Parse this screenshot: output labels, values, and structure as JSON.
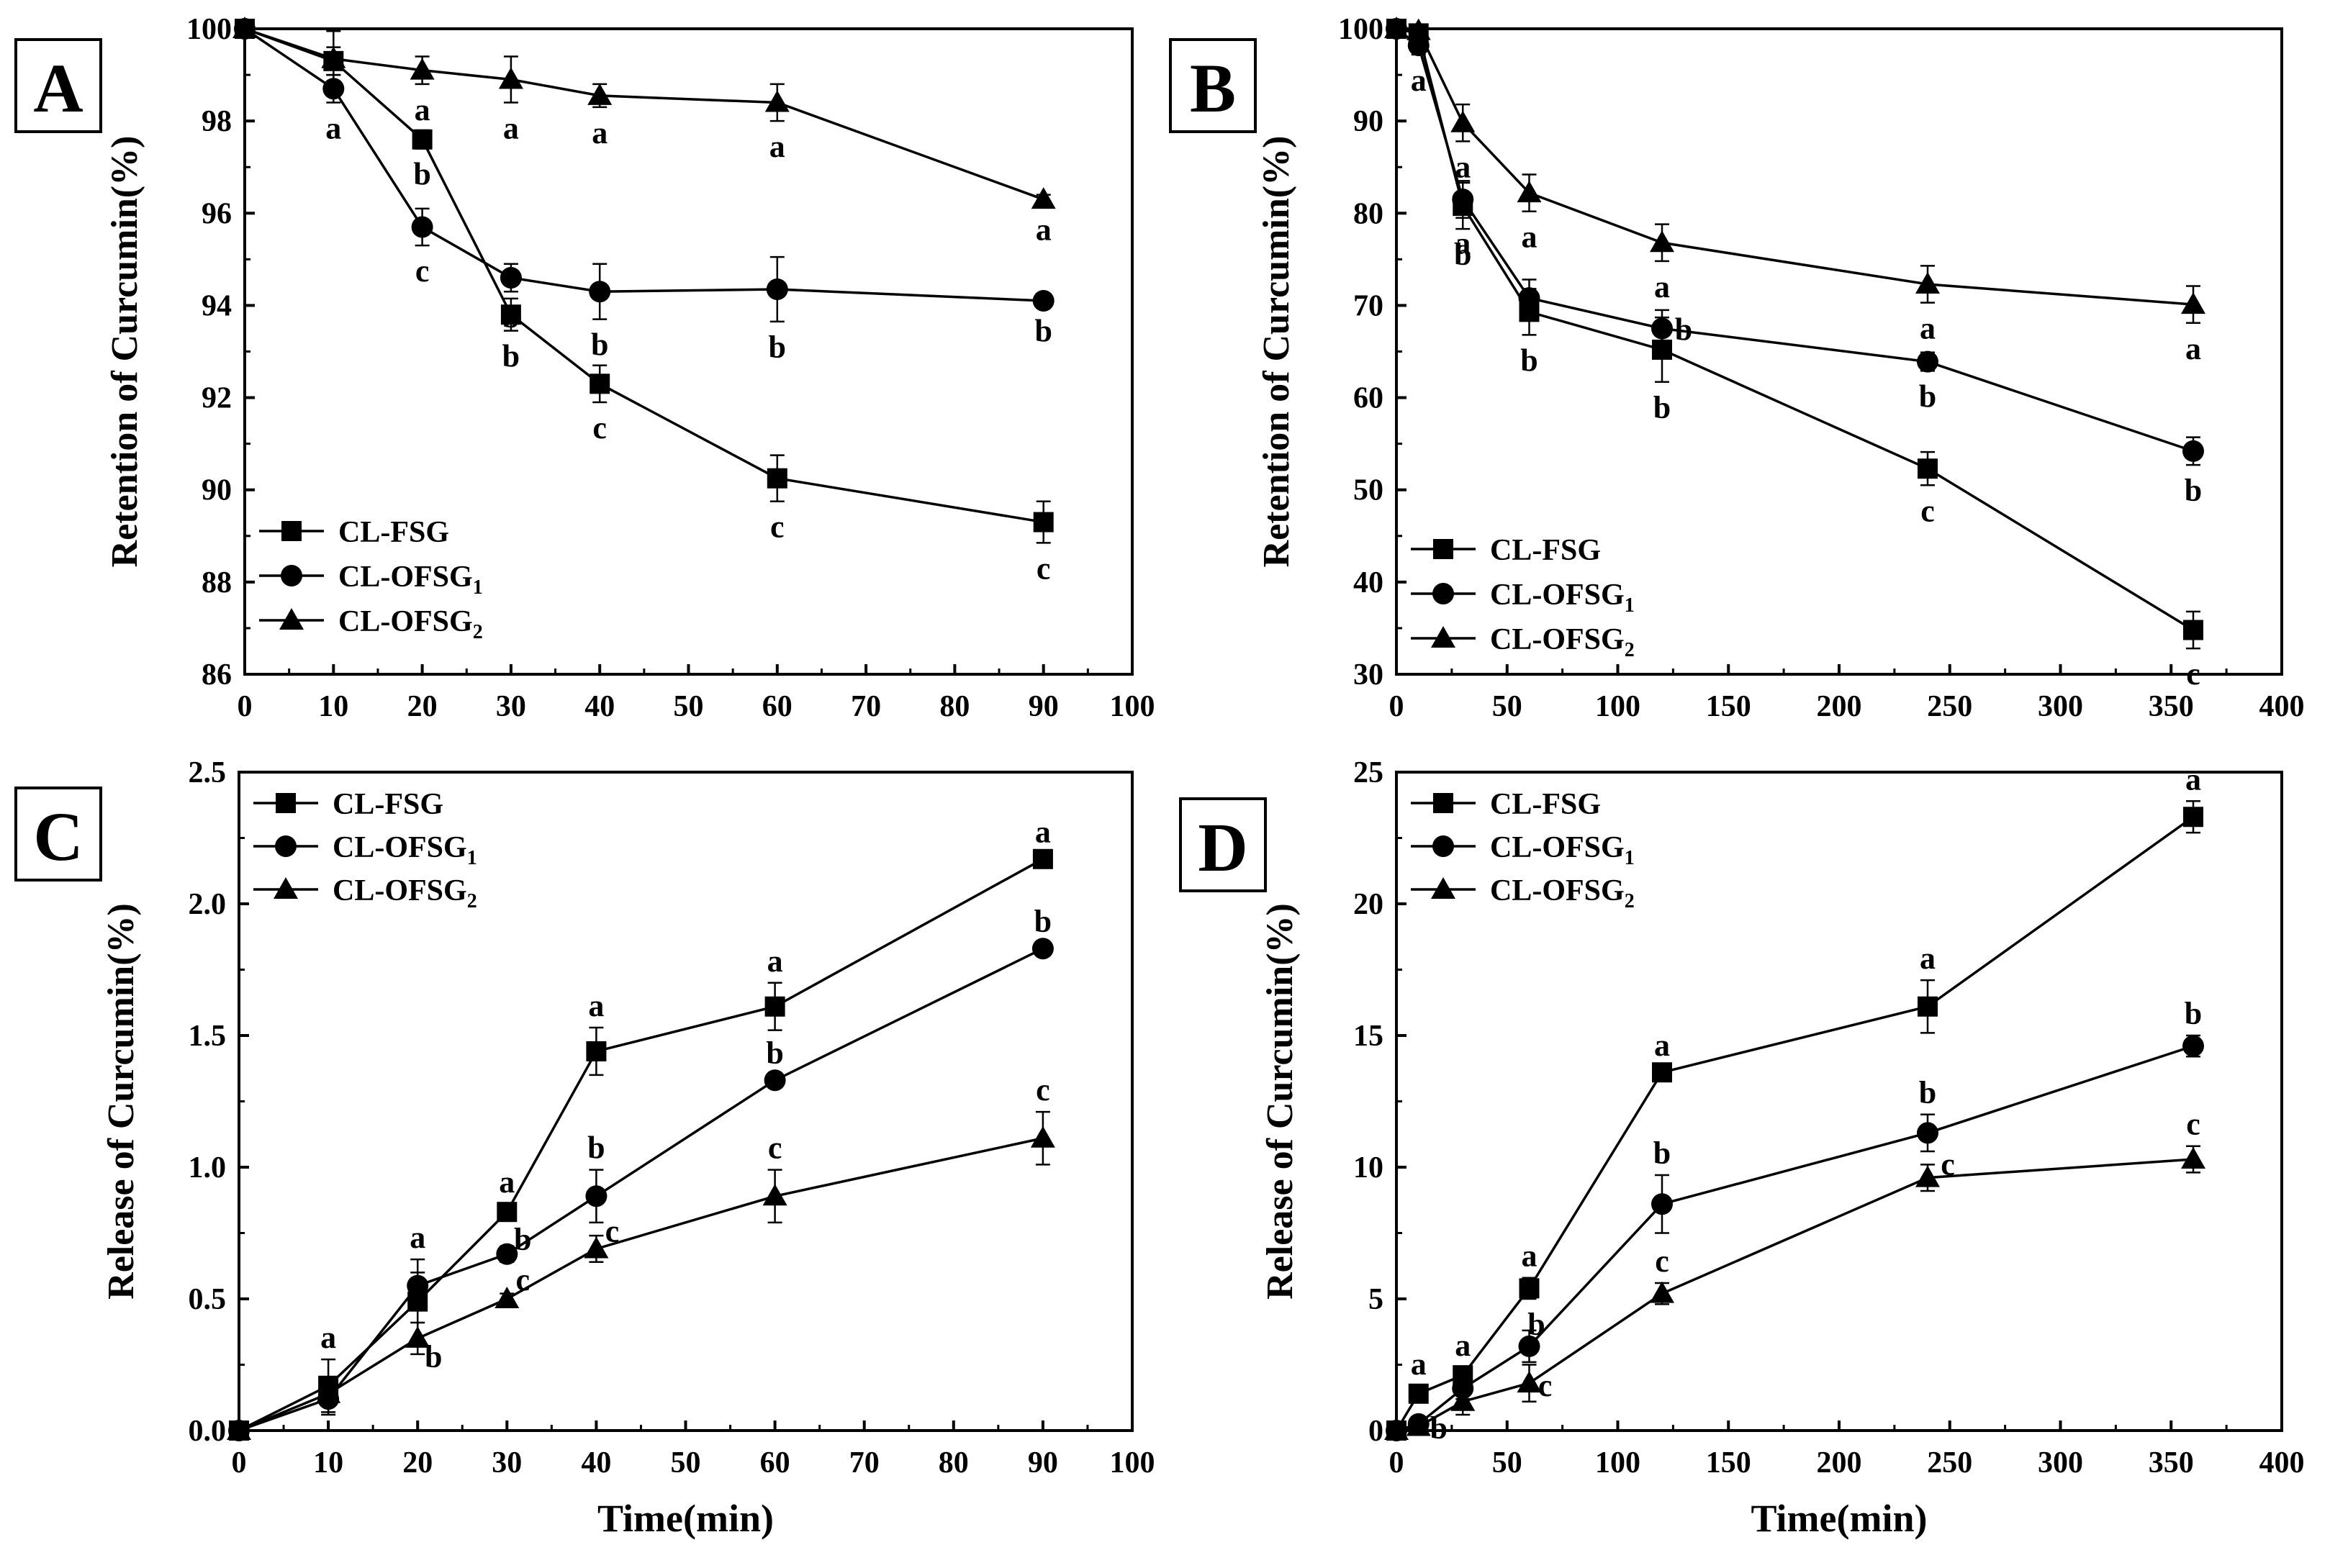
{
  "chart_data": [
    {
      "panel": "A",
      "type": "line",
      "ylabel": "Retention of Curcumin(%)",
      "xlabel": "",
      "xlim": [
        0,
        100
      ],
      "ylim": [
        86,
        100
      ],
      "xticks": [
        0,
        10,
        20,
        30,
        40,
        50,
        60,
        70,
        80,
        90,
        100
      ],
      "yticks": [
        86,
        88,
        90,
        92,
        94,
        96,
        98,
        100
      ],
      "legend_position": "bottom-left",
      "series": [
        {
          "name": "CL-FSG",
          "legend_name": "CL-FSG",
          "legend_sub": "",
          "marker": "square",
          "x": [
            0,
            10,
            20,
            30,
            40,
            60,
            90
          ],
          "y": [
            100,
            99.3,
            97.6,
            93.8,
            92.3,
            90.25,
            89.3
          ],
          "err": [
            0,
            0.3,
            0.2,
            0.35,
            0.4,
            0.5,
            0.45
          ],
          "labels": [
            "",
            "",
            "b",
            "b",
            "c",
            "c",
            "c"
          ]
        },
        {
          "name": "CL-OFSG1",
          "legend_name": "CL-OFSG",
          "legend_sub": "1",
          "marker": "circle",
          "x": [
            0,
            10,
            20,
            30,
            40,
            60,
            90
          ],
          "y": [
            100,
            98.7,
            95.7,
            94.6,
            94.3,
            94.35,
            94.1
          ],
          "err": [
            0,
            0.3,
            0.4,
            0.3,
            0.6,
            0.7,
            0.1
          ],
          "labels": [
            "",
            "a",
            "c",
            "b",
            "b",
            "b",
            "b"
          ]
        },
        {
          "name": "CL-OFSG2",
          "legend_name": "CL-OFSG",
          "legend_sub": "2",
          "marker": "triangle",
          "x": [
            0,
            10,
            20,
            30,
            40,
            60,
            90
          ],
          "y": [
            100,
            99.35,
            99.1,
            98.9,
            98.55,
            98.4,
            96.3
          ],
          "err": [
            0,
            0.6,
            0.3,
            0.5,
            0.25,
            0.4,
            0.1
          ],
          "labels": [
            "",
            "",
            "a",
            "a",
            "a",
            "a",
            "a"
          ]
        }
      ]
    },
    {
      "panel": "B",
      "type": "line",
      "ylabel": "Retention of Curcumin(%)",
      "xlabel": "",
      "xlim": [
        0,
        400
      ],
      "ylim": [
        30,
        100
      ],
      "xticks": [
        0,
        50,
        100,
        150,
        200,
        250,
        300,
        350,
        400
      ],
      "yticks": [
        30,
        40,
        50,
        60,
        70,
        80,
        90,
        100
      ],
      "legend_position": "bottom-left",
      "series": [
        {
          "name": "CL-FSG",
          "legend_name": "CL-FSG",
          "legend_sub": "",
          "marker": "square",
          "x": [
            0,
            10,
            30,
            60,
            120,
            240,
            360
          ],
          "y": [
            100,
            99.5,
            80.8,
            69.3,
            65.2,
            52.3,
            34.8
          ],
          "err": [
            0,
            0.5,
            2.5,
            2.5,
            3.5,
            1.8,
            2
          ],
          "labels": [
            "",
            "",
            "b",
            "b",
            "b",
            "c",
            "c"
          ]
        },
        {
          "name": "CL-OFSG1",
          "legend_name": "CL-OFSG",
          "legend_sub": "1",
          "marker": "circle",
          "x": [
            0,
            10,
            30,
            60,
            120,
            240,
            360
          ],
          "y": [
            100,
            98.2,
            81.5,
            70.8,
            67.5,
            63.9,
            54.2
          ],
          "err": [
            0,
            1,
            2,
            2,
            2,
            1,
            1.5
          ],
          "labels": [
            "",
            "a",
            "a",
            "",
            "b",
            "b",
            "b"
          ]
        },
        {
          "name": "CL-OFSG2",
          "legend_name": "CL-OFSG",
          "legend_sub": "2",
          "marker": "triangle",
          "x": [
            0,
            10,
            30,
            60,
            120,
            240,
            360
          ],
          "y": [
            100,
            99.8,
            89.8,
            82.2,
            76.8,
            72.3,
            70.1
          ],
          "err": [
            0,
            0.5,
            2,
            2,
            2,
            2,
            2
          ],
          "labels": [
            "",
            "",
            "a",
            "a",
            "a",
            "a",
            "a"
          ]
        }
      ]
    },
    {
      "panel": "C",
      "type": "line",
      "ylabel": "Release of Curcumin(%)",
      "xlabel": "Time(min)",
      "xlim": [
        0,
        100
      ],
      "ylim": [
        0,
        2.5
      ],
      "xticks": [
        0,
        10,
        20,
        30,
        40,
        50,
        60,
        70,
        80,
        90,
        100
      ],
      "yticks": [
        0.0,
        0.5,
        1.0,
        1.5,
        2.0,
        2.5
      ],
      "ytick_labels": [
        "0.0",
        "0.5",
        "1.0",
        "1.5",
        "2.0",
        "2.5"
      ],
      "legend_position": "top-left",
      "series": [
        {
          "name": "CL-FSG",
          "legend_name": "CL-FSG",
          "legend_sub": "",
          "marker": "square",
          "x": [
            0,
            10,
            20,
            30,
            40,
            60,
            90
          ],
          "y": [
            0,
            0.17,
            0.49,
            0.83,
            1.44,
            1.61,
            2.17
          ],
          "err": [
            0,
            0.1,
            0.16,
            0.03,
            0.09,
            0.09,
            0.02
          ],
          "labels": [
            "",
            "a",
            "a",
            "a",
            "a",
            "a",
            "a"
          ]
        },
        {
          "name": "CL-OFSG1",
          "legend_name": "CL-OFSG",
          "legend_sub": "1",
          "marker": "circle",
          "x": [
            0,
            10,
            20,
            30,
            40,
            60,
            90
          ],
          "y": [
            0,
            0.12,
            0.55,
            0.67,
            0.89,
            1.33,
            1.83
          ],
          "err": [
            0,
            0.06,
            0.05,
            0.03,
            0.1,
            0.02,
            0.02
          ],
          "labels": [
            "",
            "",
            "",
            "b",
            "b",
            "b",
            "b"
          ]
        },
        {
          "name": "CL-OFSG2",
          "legend_name": "CL-OFSG",
          "legend_sub": "2",
          "marker": "triangle",
          "x": [
            0,
            10,
            20,
            30,
            40,
            60,
            90
          ],
          "y": [
            0,
            0.14,
            0.35,
            0.5,
            0.69,
            0.89,
            1.11
          ],
          "err": [
            0,
            0.03,
            0.06,
            0.02,
            0.05,
            0.1,
            0.1
          ],
          "labels": [
            "",
            "",
            "b",
            "c",
            "c",
            "c",
            "c"
          ]
        }
      ]
    },
    {
      "panel": "D",
      "type": "line",
      "ylabel": "Release of Curcumin(%)",
      "xlabel": "Time(min)",
      "xlim": [
        0,
        400
      ],
      "ylim": [
        0,
        25
      ],
      "xticks": [
        0,
        50,
        100,
        150,
        200,
        250,
        300,
        350,
        400
      ],
      "yticks": [
        0,
        5,
        10,
        15,
        20,
        25
      ],
      "legend_position": "top-left",
      "series": [
        {
          "name": "CL-FSG",
          "legend_name": "CL-FSG",
          "legend_sub": "",
          "marker": "square",
          "x": [
            0,
            10,
            30,
            60,
            120,
            240,
            360
          ],
          "y": [
            0,
            1.4,
            2.1,
            5.4,
            13.6,
            16.1,
            23.3
          ],
          "err": [
            0,
            0.3,
            0.3,
            0.4,
            0.2,
            1,
            0.6
          ],
          "labels": [
            "",
            "a",
            "a",
            "a",
            "a",
            "a",
            "a"
          ]
        },
        {
          "name": "CL-OFSG1",
          "legend_name": "CL-OFSG",
          "legend_sub": "1",
          "marker": "circle",
          "x": [
            0,
            10,
            30,
            60,
            120,
            240,
            360
          ],
          "y": [
            0,
            0.25,
            1.6,
            3.2,
            8.6,
            11.3,
            14.6
          ],
          "err": [
            0,
            0.1,
            0.4,
            0.6,
            1.1,
            0.7,
            0.4
          ],
          "labels": [
            "",
            "b",
            "",
            "b",
            "b",
            "b",
            "b"
          ]
        },
        {
          "name": "CL-OFSG2",
          "legend_name": "CL-OFSG",
          "legend_sub": "2",
          "marker": "triangle",
          "x": [
            0,
            10,
            30,
            60,
            120,
            240,
            360
          ],
          "y": [
            0,
            0.15,
            1.1,
            1.8,
            5.2,
            9.6,
            10.3
          ],
          "err": [
            0,
            0.1,
            0.5,
            0.7,
            0.4,
            0.5,
            0.5
          ],
          "labels": [
            "",
            "",
            "",
            "c",
            "c",
            "c",
            "c"
          ]
        }
      ]
    }
  ]
}
